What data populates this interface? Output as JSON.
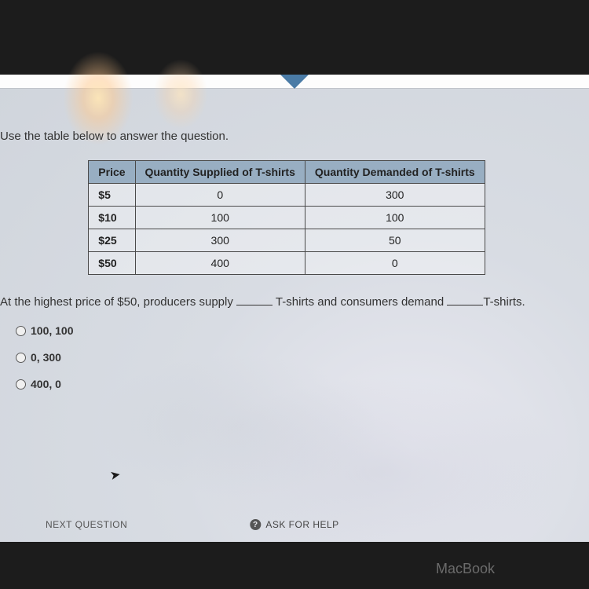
{
  "instruction": "Use the table below to answer the question.",
  "table": {
    "columns": [
      "Price",
      "Quantity Supplied of T-shirts",
      "Quantity Demanded of T-shirts"
    ],
    "rows": [
      [
        "$5",
        "0",
        "300"
      ],
      [
        "$10",
        "100",
        "100"
      ],
      [
        "$25",
        "300",
        "50"
      ],
      [
        "$50",
        "400",
        "0"
      ]
    ],
    "header_bg": "#98aec2",
    "border_color": "#4a4a4a"
  },
  "question": {
    "part1": "At the highest price of $50, producers supply ",
    "part2": " T-shirts and consumers demand ",
    "part3": "T-shirts."
  },
  "options": [
    {
      "label": "100, 100"
    },
    {
      "label": "0, 300"
    },
    {
      "label": "400, 0"
    }
  ],
  "buttons": {
    "next": "NEXT QUESTION",
    "ask": "ASK FOR HELP",
    "help_icon": "?"
  },
  "device_label": "MacBook"
}
